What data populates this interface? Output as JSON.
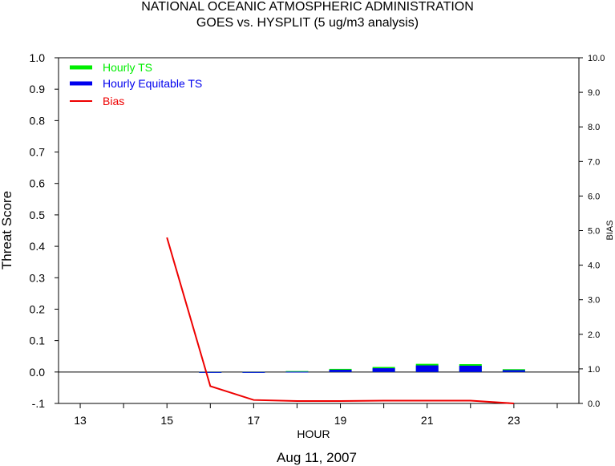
{
  "chart_data": {
    "type": "bar",
    "title": "NATIONAL OCEANIC ATMOSPHERIC ADMINISTRATION",
    "subtitle": "GOES vs. HYSPLIT  (5 ug/m3 analysis)",
    "xlabel": "HOUR",
    "ylabel": "Threat Score",
    "y2label": "BIAS",
    "date": "Aug 11, 2007",
    "xlim": [
      12.5,
      24.5
    ],
    "ylim": [
      -0.1,
      1.0
    ],
    "y2lim": [
      0.0,
      10.0
    ],
    "x_ticks": [
      13,
      14,
      15,
      16,
      17,
      18,
      19,
      20,
      21,
      22,
      23,
      24
    ],
    "x_tick_labels": [
      "13",
      "15",
      "17",
      "19",
      "21",
      "23"
    ],
    "y_ticks": [
      "1.0",
      "0.9",
      "0.8",
      "0.7",
      "0.6",
      "0.5",
      "0.4",
      "0.3",
      "0.2",
      "0.1",
      "0.0",
      "-.1"
    ],
    "y2_ticks": [
      "10.0",
      "9.0",
      "8.0",
      "7.0",
      "6.0",
      "5.0",
      "4.0",
      "3.0",
      "2.0",
      "1.0",
      "0.0"
    ],
    "legend": "top-left",
    "series": [
      {
        "name": "Hourly TS",
        "color": "#00ee00",
        "kind": "bar",
        "x": [
          16,
          17,
          18,
          19,
          20,
          21,
          22,
          23
        ],
        "values": [
          0.0,
          0.0,
          0.003,
          0.01,
          0.016,
          0.026,
          0.025,
          0.009
        ]
      },
      {
        "name": "Hourly Equitable TS",
        "color": "#0000ee",
        "kind": "bar",
        "x": [
          16,
          17,
          18,
          19,
          20,
          21,
          22,
          23
        ],
        "values": [
          -0.001,
          -0.001,
          0.001,
          0.007,
          0.012,
          0.021,
          0.02,
          0.006
        ]
      },
      {
        "name": "Bias",
        "color": "#ee0000",
        "kind": "line",
        "axis": "right",
        "x": [
          15,
          16,
          17,
          18,
          19,
          20,
          21,
          22,
          23
        ],
        "values": [
          4.8,
          0.5,
          0.1,
          0.07,
          0.07,
          0.08,
          0.08,
          0.08,
          0.0
        ]
      }
    ]
  }
}
